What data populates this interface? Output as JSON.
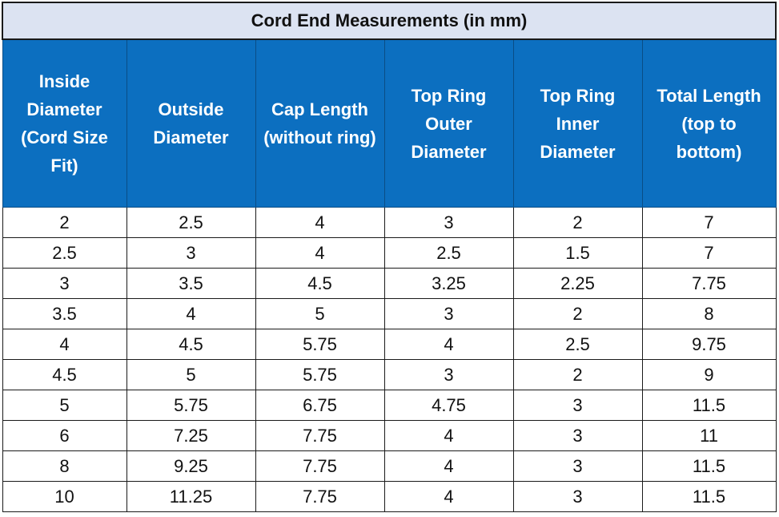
{
  "table": {
    "title": "Cord End Measurements (in mm)",
    "headers": [
      [
        "Inside",
        "Diameter",
        "(Cord Size",
        "Fit)"
      ],
      [
        "Outside",
        "Diameter"
      ],
      [
        "Cap Length",
        "(without ring)"
      ],
      [
        "Top Ring",
        "Outer",
        "Diameter"
      ],
      [
        "Top Ring",
        "Inner",
        "Diameter"
      ],
      [
        "Total Length",
        "(top to",
        "bottom)"
      ]
    ],
    "rows": [
      [
        "2",
        "2.5",
        "4",
        "3",
        "2",
        "7"
      ],
      [
        "2.5",
        "3",
        "4",
        "2.5",
        "1.5",
        "7"
      ],
      [
        "3",
        "3.5",
        "4.5",
        "3.25",
        "2.25",
        "7.75"
      ],
      [
        "3.5",
        "4",
        "5",
        "3",
        "2",
        "8"
      ],
      [
        "4",
        "4.5",
        "5.75",
        "4",
        "2.5",
        "9.75"
      ],
      [
        "4.5",
        "5",
        "5.75",
        "3",
        "2",
        "9"
      ],
      [
        "5",
        "5.75",
        "6.75",
        "4.75",
        "3",
        "11.5"
      ],
      [
        "6",
        "7.25",
        "7.75",
        "4",
        "3",
        "11"
      ],
      [
        "8",
        "9.25",
        "7.75",
        "4",
        "3",
        "11.5"
      ],
      [
        "10",
        "11.25",
        "7.75",
        "4",
        "3",
        "11.5"
      ]
    ]
  },
  "colors": {
    "title_background": "#dce3f2",
    "header_background": "#0c6fc0",
    "header_text": "#ffffff"
  }
}
